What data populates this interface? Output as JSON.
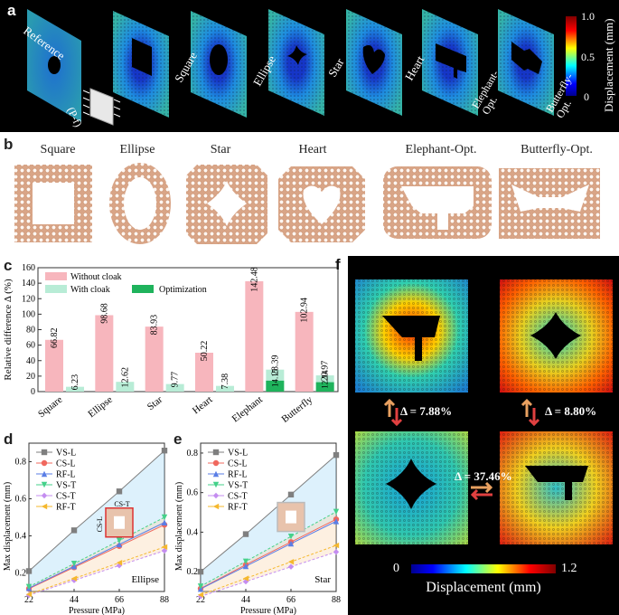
{
  "panel_a": {
    "label": "a",
    "reference_label": "Reference",
    "pf_label": "(P-f)",
    "shapes": [
      "Square",
      "Ellipse",
      "Star",
      "Heart",
      "Elephant-\nOpt.",
      "Butterfly-\nOpt."
    ],
    "colorbar": {
      "ticks": [
        "1.0",
        "0.5",
        "0"
      ],
      "title": "Displacement (mm)",
      "min": 0,
      "max": 1.0
    }
  },
  "panel_b": {
    "label": "b",
    "titles": [
      "Square",
      "Ellipse",
      "Star",
      "Heart",
      "Elephant-Opt.",
      "Butterfly-Opt."
    ]
  },
  "panel_f": {
    "label": "f",
    "deltas": [
      "Δ = 7.88%",
      "Δ = 8.80%",
      "Δ = 37.46%"
    ],
    "colorbar_min": "0",
    "colorbar_max": "1.2",
    "colorbar_title": "Displacement (mm)"
  },
  "chart_data": [
    {
      "panel": "c",
      "type": "bar",
      "categories": [
        "Square",
        "Ellipse",
        "Star",
        "Heart",
        "Elephant",
        "Butterfly"
      ],
      "ylabel": "Relative difference Δ (%)",
      "ylim": [
        0,
        160
      ],
      "yticks": [
        0,
        20,
        40,
        60,
        80,
        100,
        120,
        140,
        160
      ],
      "series": [
        {
          "name": "Without cloak",
          "color": "#f7b6bd",
          "values": [
            66.82,
            98.68,
            83.93,
            50.22,
            142.48,
            102.94
          ]
        },
        {
          "name": "With cloak",
          "color": "#b8ecd6",
          "values": [
            6.23,
            12.62,
            9.77,
            7.38,
            28.39,
            20.97
          ]
        },
        {
          "name": "Optimization",
          "color": "#1fb35c",
          "values": [
            null,
            null,
            null,
            null,
            14.15,
            12.14
          ]
        }
      ],
      "legend": "top"
    },
    {
      "panel": "d",
      "type": "line",
      "annotation": "Ellipse",
      "inset_labels": [
        "CS-T",
        "CS-L"
      ],
      "x": [
        22,
        44,
        66,
        88
      ],
      "xlabel": "Pressure (MPa)",
      "ylabel": "Max displacement (mm)",
      "xlim": [
        22,
        88
      ],
      "ylim": [
        0.1,
        0.9
      ],
      "yticks": [
        0.2,
        0.4,
        0.6,
        0.8
      ],
      "series": [
        {
          "name": "VS-L",
          "color": "#7f7f7f",
          "marker": "square",
          "values": [
            0.21,
            0.43,
            0.64,
            0.86
          ]
        },
        {
          "name": "CS-L",
          "color": "#f0685e",
          "marker": "circle",
          "values": [
            0.115,
            0.23,
            0.345,
            0.46
          ]
        },
        {
          "name": "RF-L",
          "color": "#5a7ee6",
          "marker": "triangle-up",
          "values": [
            0.118,
            0.236,
            0.354,
            0.472
          ]
        },
        {
          "name": "VS-T",
          "color": "#45d18a",
          "marker": "triangle-down",
          "values": [
            0.125,
            0.25,
            0.375,
            0.5
          ]
        },
        {
          "name": "CS-T",
          "color": "#c48df0",
          "marker": "diamond",
          "values": [
            0.08,
            0.16,
            0.24,
            0.32
          ]
        },
        {
          "name": "RF-T",
          "color": "#f5b82e",
          "marker": "triangle-left",
          "values": [
            0.085,
            0.17,
            0.255,
            0.34
          ]
        }
      ],
      "legend": "top-left"
    },
    {
      "panel": "e",
      "type": "line",
      "annotation": "Star",
      "x": [
        22,
        44,
        66,
        88
      ],
      "xlabel": "Pressure (MPa)",
      "ylabel": "Max displacement (mm)",
      "xlim": [
        22,
        88
      ],
      "ylim": [
        0.1,
        0.85
      ],
      "yticks": [
        0.2,
        0.4,
        0.6,
        0.8
      ],
      "series": [
        {
          "name": "VS-L",
          "color": "#7f7f7f",
          "marker": "square",
          "values": [
            0.2,
            0.39,
            0.59,
            0.79
          ]
        },
        {
          "name": "CS-L",
          "color": "#f0685e",
          "marker": "circle",
          "values": [
            0.115,
            0.235,
            0.35,
            0.465
          ]
        },
        {
          "name": "RF-L",
          "color": "#5a7ee6",
          "marker": "triangle-up",
          "values": [
            0.113,
            0.228,
            0.342,
            0.455
          ]
        },
        {
          "name": "VS-T",
          "color": "#45d18a",
          "marker": "triangle-down",
          "values": [
            0.126,
            0.252,
            0.378,
            0.503
          ]
        },
        {
          "name": "CS-T",
          "color": "#c48df0",
          "marker": "diamond",
          "values": [
            0.075,
            0.15,
            0.225,
            0.3
          ]
        },
        {
          "name": "RF-T",
          "color": "#f5b82e",
          "marker": "triangle-left",
          "values": [
            0.083,
            0.166,
            0.25,
            0.333
          ]
        }
      ],
      "legend": "top-left"
    }
  ]
}
